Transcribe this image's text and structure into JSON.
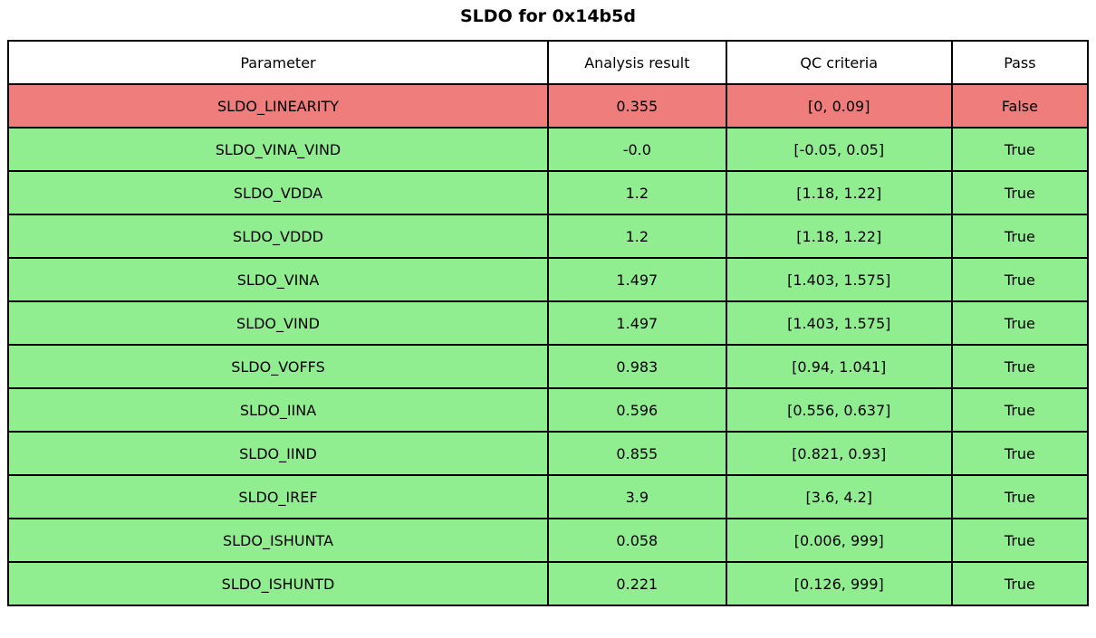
{
  "title": "SLDO for 0x14b5d",
  "colors": {
    "pass_row": "#90ee90",
    "fail_row": "#ee7d7b",
    "header_bg": "#ffffff",
    "border": "#000000",
    "text": "#000000"
  },
  "chart_data": {
    "type": "table",
    "title": "SLDO for 0x14b5d",
    "columns": [
      "Parameter",
      "Analysis result",
      "QC criteria",
      "Pass"
    ],
    "rows": [
      [
        "SLDO_LINEARITY",
        "0.355",
        "[0, 0.09]",
        "False"
      ],
      [
        "SLDO_VINA_VIND",
        "-0.0",
        "[-0.05, 0.05]",
        "True"
      ],
      [
        "SLDO_VDDA",
        "1.2",
        "[1.18, 1.22]",
        "True"
      ],
      [
        "SLDO_VDDD",
        "1.2",
        "[1.18, 1.22]",
        "True"
      ],
      [
        "SLDO_VINA",
        "1.497",
        "[1.403, 1.575]",
        "True"
      ],
      [
        "SLDO_VIND",
        "1.497",
        "[1.403, 1.575]",
        "True"
      ],
      [
        "SLDO_VOFFS",
        "0.983",
        "[0.94, 1.041]",
        "True"
      ],
      [
        "SLDO_IINA",
        "0.596",
        "[0.556, 0.637]",
        "True"
      ],
      [
        "SLDO_IIND",
        "0.855",
        "[0.821, 0.93]",
        "True"
      ],
      [
        "SLDO_IREF",
        "3.9",
        "[3.6, 4.2]",
        "True"
      ],
      [
        "SLDO_ISHUNTA",
        "0.058",
        "[0.006, 999]",
        "True"
      ],
      [
        "SLDO_ISHUNTD",
        "0.221",
        "[0.126, 999]",
        "True"
      ]
    ],
    "row_status": [
      "fail",
      "pass",
      "pass",
      "pass",
      "pass",
      "pass",
      "pass",
      "pass",
      "pass",
      "pass",
      "pass",
      "pass"
    ],
    "layout": {
      "column_width_fractions": [
        0.5,
        0.165,
        0.209,
        0.126
      ],
      "legend": "none",
      "grid": "full-borders"
    }
  }
}
